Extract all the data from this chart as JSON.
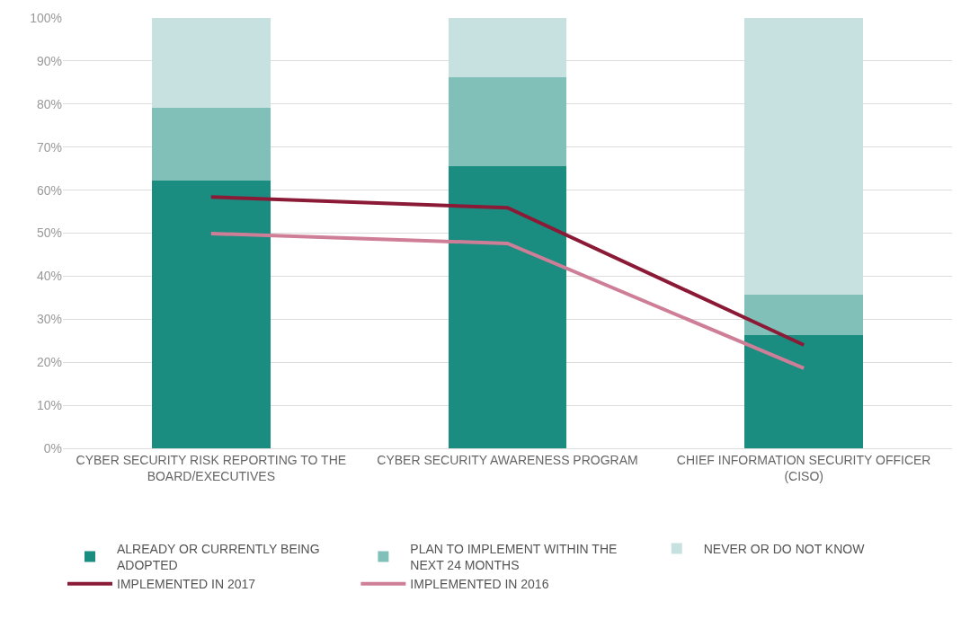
{
  "chart_data": {
    "type": "bar",
    "stacked": true,
    "categories": [
      "CYBER SECURITY RISK REPORTING TO THE BOARD/EXECUTIVES",
      "CYBER SECURITY AWARENESS PROGRAM",
      "CHIEF INFORMATION SECURITY OFFICER (CISO)"
    ],
    "series": [
      {
        "name": "ALREADY OR CURRENTLY BEING ADOPTED",
        "color": "#1a8c80",
        "values": [
          62.3,
          65.6,
          26.3
        ]
      },
      {
        "name": "PLAN TO IMPLEMENT WITHIN THE NEXT 24 MONTHS",
        "color": "#80c0b9",
        "values": [
          16.8,
          20.7,
          9.3
        ]
      },
      {
        "name": "NEVER OR DO NOT KNOW",
        "color": "#c6e1e0",
        "values": [
          20.9,
          13.7,
          64.4
        ]
      },
      {
        "name": "IMPLEMENTED IN 2017",
        "color": "#8b1a36",
        "type": "line",
        "values": [
          58.4,
          55.9,
          24.0
        ]
      },
      {
        "name": "IMPLEMENTED IN 2016",
        "color": "#cf7e97",
        "type": "line",
        "values": [
          49.9,
          47.6,
          18.6
        ]
      }
    ],
    "ylim": [
      0,
      100
    ],
    "yticks": [
      {
        "value": 0,
        "label": "0%"
      },
      {
        "value": 10,
        "label": "10%"
      },
      {
        "value": 20,
        "label": "20%"
      },
      {
        "value": 30,
        "label": "30%"
      },
      {
        "value": 40,
        "label": "40%"
      },
      {
        "value": 50,
        "label": "50%"
      },
      {
        "value": 60,
        "label": "60%"
      },
      {
        "value": 70,
        "label": "70%"
      },
      {
        "value": 80,
        "label": "80%"
      },
      {
        "value": 90,
        "label": "90%"
      },
      {
        "value": 100,
        "label": "100%"
      }
    ],
    "grid": "y",
    "legend": "bottom",
    "marker": "none",
    "line_style": "solid"
  }
}
